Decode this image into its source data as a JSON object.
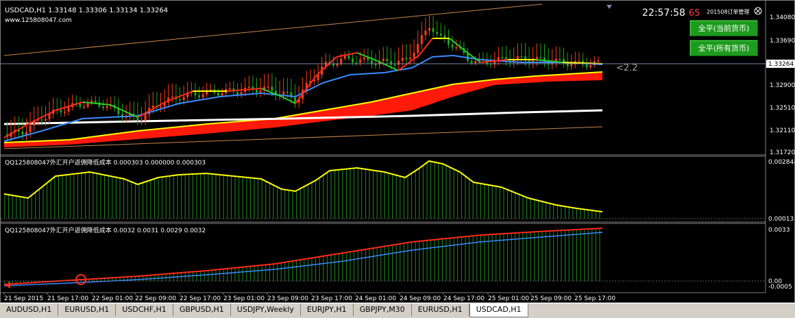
{
  "main_chart": {
    "symbol_info": "USDCAD,H1  1.33148 1.33306 1.33134 1.33264",
    "website": "www.125808047.com",
    "clock": "22:57:58",
    "countdown": "65",
    "account_label": "201508订单管理",
    "price_labels": [
      "1.34080",
      "1.33690",
      "1.33264",
      "1.32900",
      "1.32510",
      "1.32110",
      "1.31720"
    ],
    "current_price": "1.33264",
    "spread_label": "<2.2"
  },
  "buttons": {
    "close_current": "全平(当前货币)",
    "close_all": "全平(所有货币)"
  },
  "indicator1": {
    "label": "QQ125808047外汇开户返佣降低成本 0.000303 0.000000 0.000303",
    "scale_top": "0.002844",
    "scale_bottom": "0.00013",
    "bottom_alt": "0.00"
  },
  "indicator2": {
    "label": "QQ125808047外汇开户返佣降低成本 0.0032 0.0031 0.0029 0.0032",
    "scale_top": "0.0033",
    "scale_mid": "0.00",
    "scale_bottom": "-0.0005"
  },
  "time_axis": [
    "21 Sep 2015",
    "21 Sep 17:00",
    "22 Sep 01:00",
    "22 Sep 09:00",
    "22 Sep 17:00",
    "23 Sep 01:00",
    "23 Sep 09:00",
    "23 Sep 17:00",
    "24 Sep 01:00",
    "24 Sep 09:00",
    "24 Sep 17:00",
    "25 Sep 01:00",
    "25 Sep 09:00",
    "25 Sep 17:00"
  ],
  "tabs": [
    "AUDUSD,H1",
    "EURUSD,H1",
    "USDCHF,H1",
    "GBPUSD,H1",
    "USDJPY,Weekly",
    "EURJPY,H1",
    "GBPJPY,M30",
    "EURUSD,H1",
    "USDCAD,H1"
  ],
  "active_tab": 8,
  "colors": {
    "background": "#000000",
    "up_candle": "#ff3c1a",
    "down_candle": "#1fa31f",
    "ma_red": "#ff2a1a",
    "ma_yellow": "#ffff00",
    "ma_white": "#ffffff",
    "ma_blue": "#3a8cff",
    "channel": "#c8864a",
    "histogram": "#1f8f1f",
    "accent_green": "#1d9b1d"
  }
}
